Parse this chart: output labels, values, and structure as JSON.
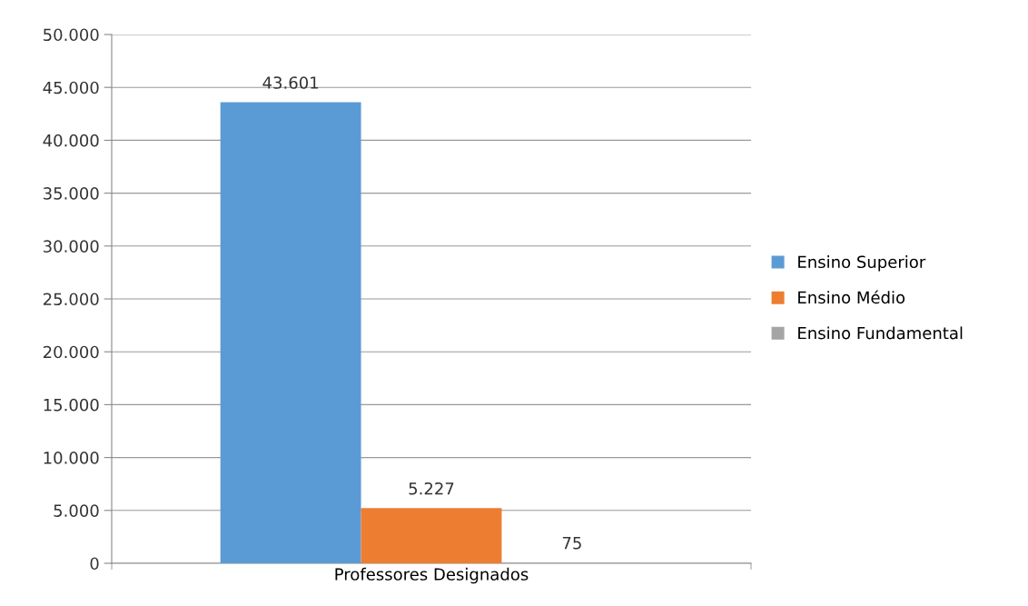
{
  "chart_data": {
    "type": "bar",
    "categories": [
      "Professores Designados"
    ],
    "series": [
      {
        "name": "Ensino Superior",
        "color": "#5b9bd5",
        "values": [
          43601
        ],
        "value_labels": [
          "43.601"
        ]
      },
      {
        "name": "Ensino Médio",
        "color": "#ed7d31",
        "values": [
          5227
        ],
        "value_labels": [
          "5.227"
        ]
      },
      {
        "name": "Ensino Fundamental",
        "color": "#a5a5a5",
        "values": [
          75
        ],
        "value_labels": [
          "75"
        ]
      }
    ],
    "ylim": [
      0,
      50000
    ],
    "yticks": [
      0,
      {
        "value": 5000,
        "label": "5.000"
      },
      {
        "value": 10000,
        "label": "10.000"
      },
      {
        "value": 15000,
        "label": "15.000"
      },
      {
        "value": 20000,
        "label": "20.000"
      },
      {
        "value": 25000,
        "label": "25.000"
      },
      {
        "value": 30000,
        "label": "30.000"
      },
      {
        "value": 35000,
        "label": "35.000"
      },
      {
        "value": 40000,
        "label": "40.000"
      },
      {
        "value": 45000,
        "label": "45.000"
      },
      {
        "value": 50000,
        "label": "50.000"
      }
    ],
    "grid": "y",
    "legend": "right"
  }
}
